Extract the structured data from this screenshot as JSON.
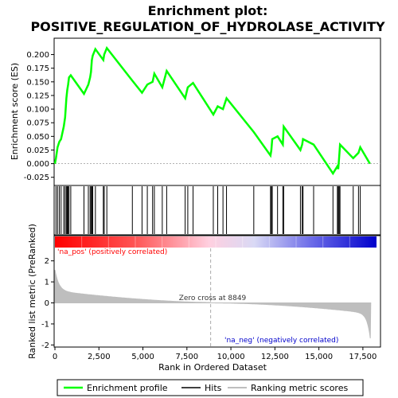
{
  "chart_data": {
    "type": "line",
    "title_line1": "Enrichment plot:",
    "title_line2": "POSITIVE_REGULATION_OF_HYDROLASE_ACTIVITY",
    "es_panel": {
      "ylabel": "Enrichment score (ES)",
      "ylim": [
        -0.04,
        0.23
      ],
      "yticks": [
        "-0.025",
        "0.000",
        "0.025",
        "0.050",
        "0.075",
        "0.100",
        "0.125",
        "0.150",
        "0.175",
        "0.200"
      ],
      "ytick_values": [
        -0.025,
        0.0,
        0.025,
        0.05,
        0.075,
        0.1,
        0.125,
        0.15,
        0.175,
        0.2
      ],
      "color": "#00ff00"
    },
    "metric_panel": {
      "ylabel": "Ranked list metric (PreRanked)",
      "ylim": [
        -2.1,
        3.2
      ],
      "yticks": [
        "-2",
        "-1",
        "0",
        "1",
        "2"
      ],
      "ytick_values": [
        -2,
        -1,
        0,
        1,
        2
      ],
      "zero_cross_label": "Zero cross at 8849",
      "zero_cross": 8849,
      "pos_label": "'na_pos' (positively correlated)",
      "neg_label": "'na_neg' (negatively correlated)",
      "pos_color": "#ff0000",
      "neg_color": "#0000ff"
    },
    "x_axis": {
      "xlabel": "Rank in Ordered Dataset",
      "xlim": [
        0,
        18500
      ],
      "xticks": [
        "0",
        "2,500",
        "5,000",
        "7,500",
        "10,000",
        "12,500",
        "15,000",
        "17,500"
      ],
      "xtick_values": [
        0,
        2500,
        5000,
        7500,
        10000,
        12500,
        15000,
        17500
      ],
      "n_genes": 17950
    },
    "es_profile": {
      "x": [
        0,
        60,
        150,
        250,
        350,
        500,
        580,
        650,
        700,
        750,
        800,
        900,
        1650,
        1900,
        2000,
        2050,
        2100,
        2150,
        2300,
        2750,
        2800,
        2950,
        4400,
        4950,
        5250,
        5550,
        5650,
        6100,
        6350,
        7400,
        7550,
        7850,
        9000,
        9250,
        9550,
        9750,
        11300,
        12250,
        12300,
        12350,
        12650,
        12950,
        13000,
        13950,
        14050,
        14100,
        14700,
        15800,
        16050,
        16100,
        16150,
        16200,
        16950,
        17250,
        17350,
        17900
      ],
      "y": [
        0.0,
        0.01,
        0.03,
        0.04,
        0.045,
        0.068,
        0.085,
        0.12,
        0.135,
        0.145,
        0.158,
        0.162,
        0.128,
        0.145,
        0.158,
        0.168,
        0.19,
        0.198,
        0.21,
        0.19,
        0.2,
        0.212,
        0.152,
        0.13,
        0.145,
        0.15,
        0.165,
        0.14,
        0.17,
        0.12,
        0.14,
        0.148,
        0.09,
        0.105,
        0.1,
        0.12,
        0.058,
        0.015,
        0.025,
        0.045,
        0.05,
        0.035,
        0.068,
        0.025,
        0.035,
        0.045,
        0.035,
        -0.018,
        -0.005,
        -0.01,
        0.01,
        0.035,
        0.01,
        0.02,
        0.03,
        0.0
      ]
    },
    "hits": [
      60,
      150,
      250,
      350,
      500,
      580,
      650,
      700,
      750,
      800,
      900,
      1650,
      1900,
      2000,
      2050,
      2100,
      2150,
      2300,
      2750,
      2800,
      2950,
      4400,
      4950,
      5250,
      5550,
      5650,
      6100,
      6350,
      7400,
      7550,
      7850,
      9000,
      9250,
      9550,
      9750,
      11300,
      12250,
      12300,
      12350,
      12650,
      12950,
      13000,
      13950,
      14050,
      14100,
      14700,
      15800,
      16050,
      16100,
      16150,
      16200,
      16950,
      17250,
      17350
    ],
    "legend": [
      {
        "label": "Enrichment profile",
        "color": "#00ff00"
      },
      {
        "label": "Hits",
        "color": "#000000"
      },
      {
        "label": "Ranking metric scores",
        "color": "#bebebe"
      }
    ]
  }
}
